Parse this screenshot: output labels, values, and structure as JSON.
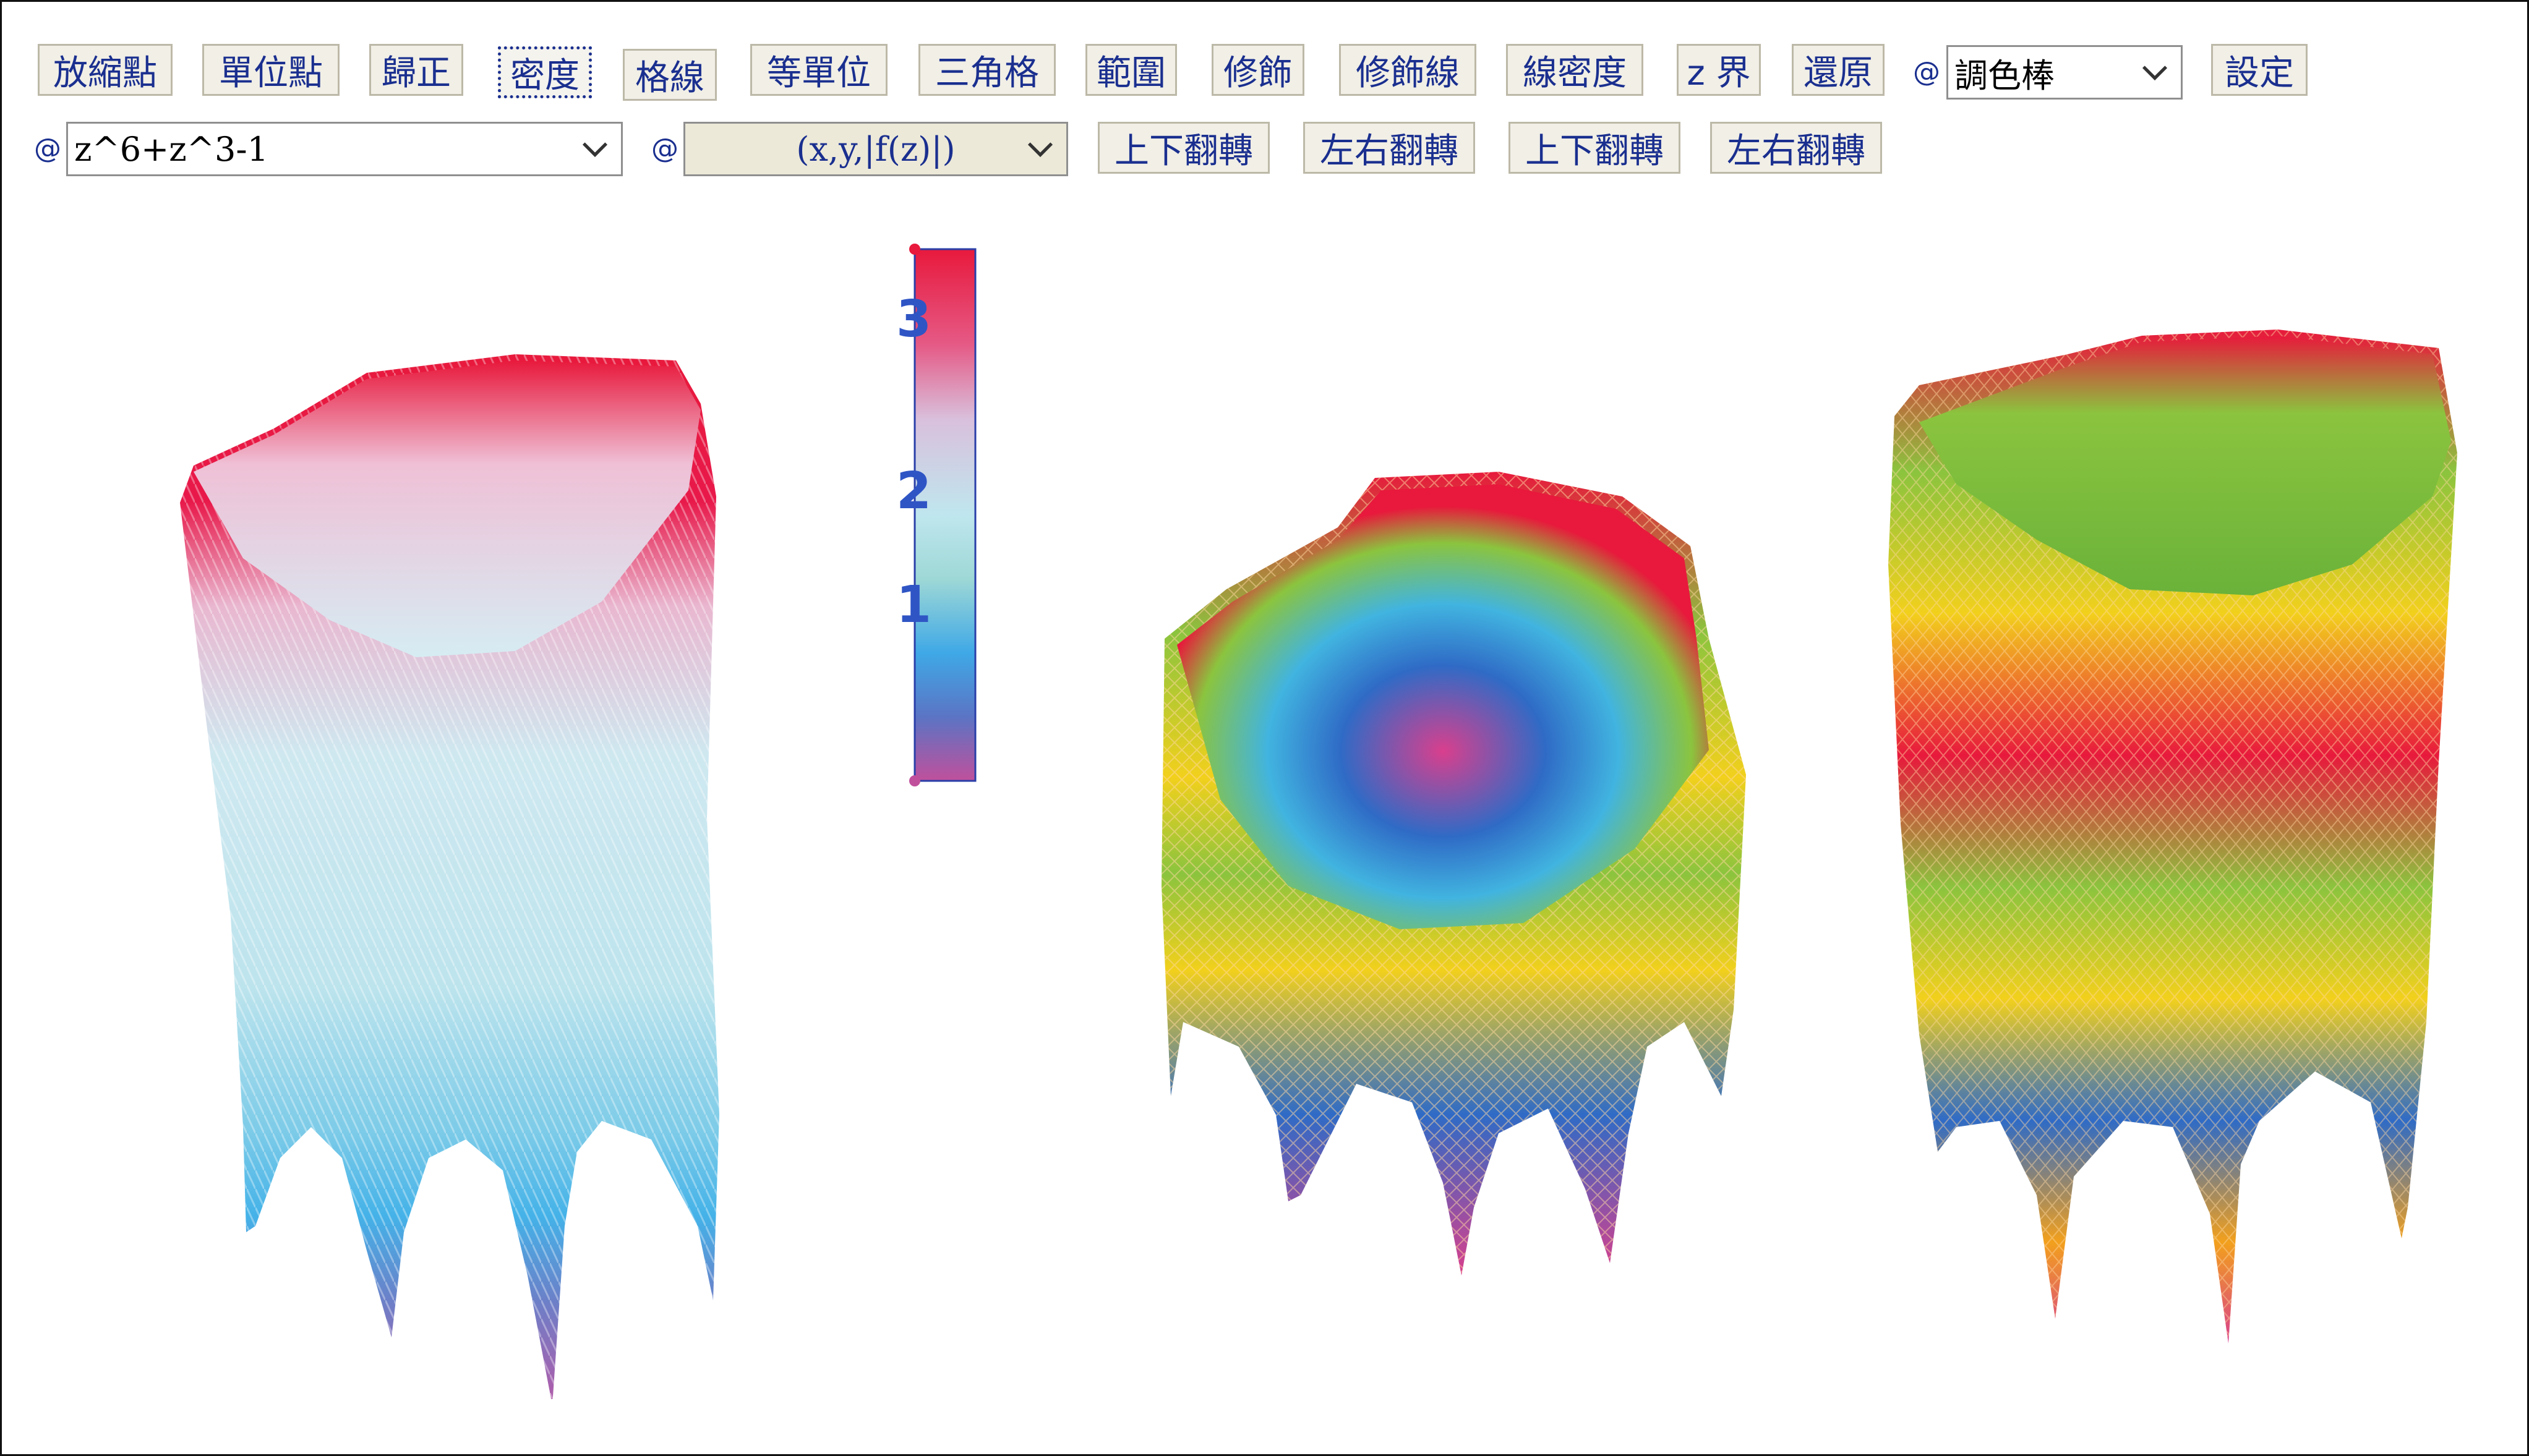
{
  "toolbar": {
    "row1": [
      "放縮點",
      "單位點",
      "歸正",
      "密度",
      "格線",
      "等單位",
      "三角格",
      "範圍",
      "修飾",
      "修飾線",
      "線密度",
      "z 界",
      "還原"
    ],
    "at": "@",
    "palette_select": "調色棒",
    "settings": "設定",
    "row2_buttons": [
      "上下翻轉",
      "左右翻轉",
      "上下翻轉",
      "左右翻轉"
    ]
  },
  "function_select": {
    "value": "z^6+z^3-1"
  },
  "mode_select": {
    "value": "(x,y,|f(z)|)"
  },
  "colorbar": {
    "labels": [
      "3",
      "2",
      "1"
    ],
    "colors": [
      "#e8193c",
      "#d9b6d8",
      "#b5e2ea",
      "#9ed2d0",
      "#3fa8e6",
      "#b55aa8"
    ]
  },
  "plots": [
    {
      "name": "surface-gradient",
      "colors": [
        "#e8193c",
        "#e7c4dc",
        "#bfe6ee",
        "#44b2e8",
        "#8e5aa8"
      ]
    },
    {
      "name": "surface-rainbow-a",
      "colors": [
        "#e8193c",
        "#f2d01c",
        "#8bc43e",
        "#2f6bc6",
        "#d93f8d"
      ]
    },
    {
      "name": "surface-rainbow-b",
      "colors": [
        "#e8193c",
        "#f2d01c",
        "#8bc43e",
        "#2f6bc6",
        "#d93f8d"
      ]
    }
  ]
}
